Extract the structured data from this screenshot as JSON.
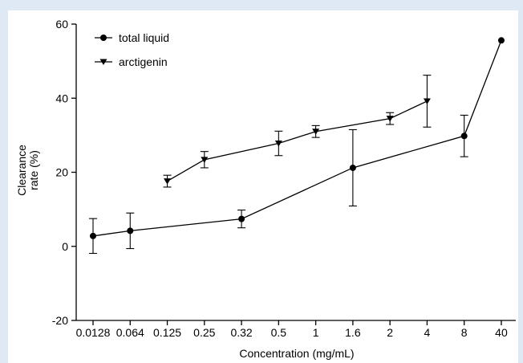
{
  "chart_data": {
    "type": "line",
    "categories": [
      "0.0128",
      "0.064",
      "0.125",
      "0.25",
      "0.32",
      "0.5",
      "1",
      "1.6",
      "2",
      "4",
      "8",
      "40"
    ],
    "xlabel": "Concentration    (mg/mL)",
    "ylabel_line1": "Clearance",
    "ylabel_line2": "rate  (%)",
    "ylim": [
      -20,
      60
    ],
    "yticks": [
      -20,
      0,
      20,
      40,
      60
    ],
    "grid": false,
    "legend_position": "top-left",
    "series": [
      {
        "name": "total liquid",
        "marker": "circle",
        "color": "#000000",
        "points": [
          {
            "x": "0.0128",
            "y": 2.8,
            "err": 4.7
          },
          {
            "x": "0.064",
            "y": 4.2,
            "err": 4.8
          },
          {
            "x": "0.32",
            "y": 7.4,
            "err": 2.4
          },
          {
            "x": "1.6",
            "y": 21.2,
            "err": 10.3
          },
          {
            "x": "8",
            "y": 29.8,
            "err": 5.6
          },
          {
            "x": "40",
            "y": 55.6,
            "err": 0
          }
        ]
      },
      {
        "name": "arctigenin",
        "marker": "triangle-down",
        "color": "#000000",
        "points": [
          {
            "x": "0.125",
            "y": 17.6,
            "err": 1.6
          },
          {
            "x": "0.25",
            "y": 23.4,
            "err": 2.2
          },
          {
            "x": "0.5",
            "y": 27.8,
            "err": 3.3
          },
          {
            "x": "1",
            "y": 31.0,
            "err": 1.6
          },
          {
            "x": "2",
            "y": 34.5,
            "err": 1.6
          },
          {
            "x": "4",
            "y": 39.2,
            "err": 7.0
          }
        ]
      }
    ]
  }
}
